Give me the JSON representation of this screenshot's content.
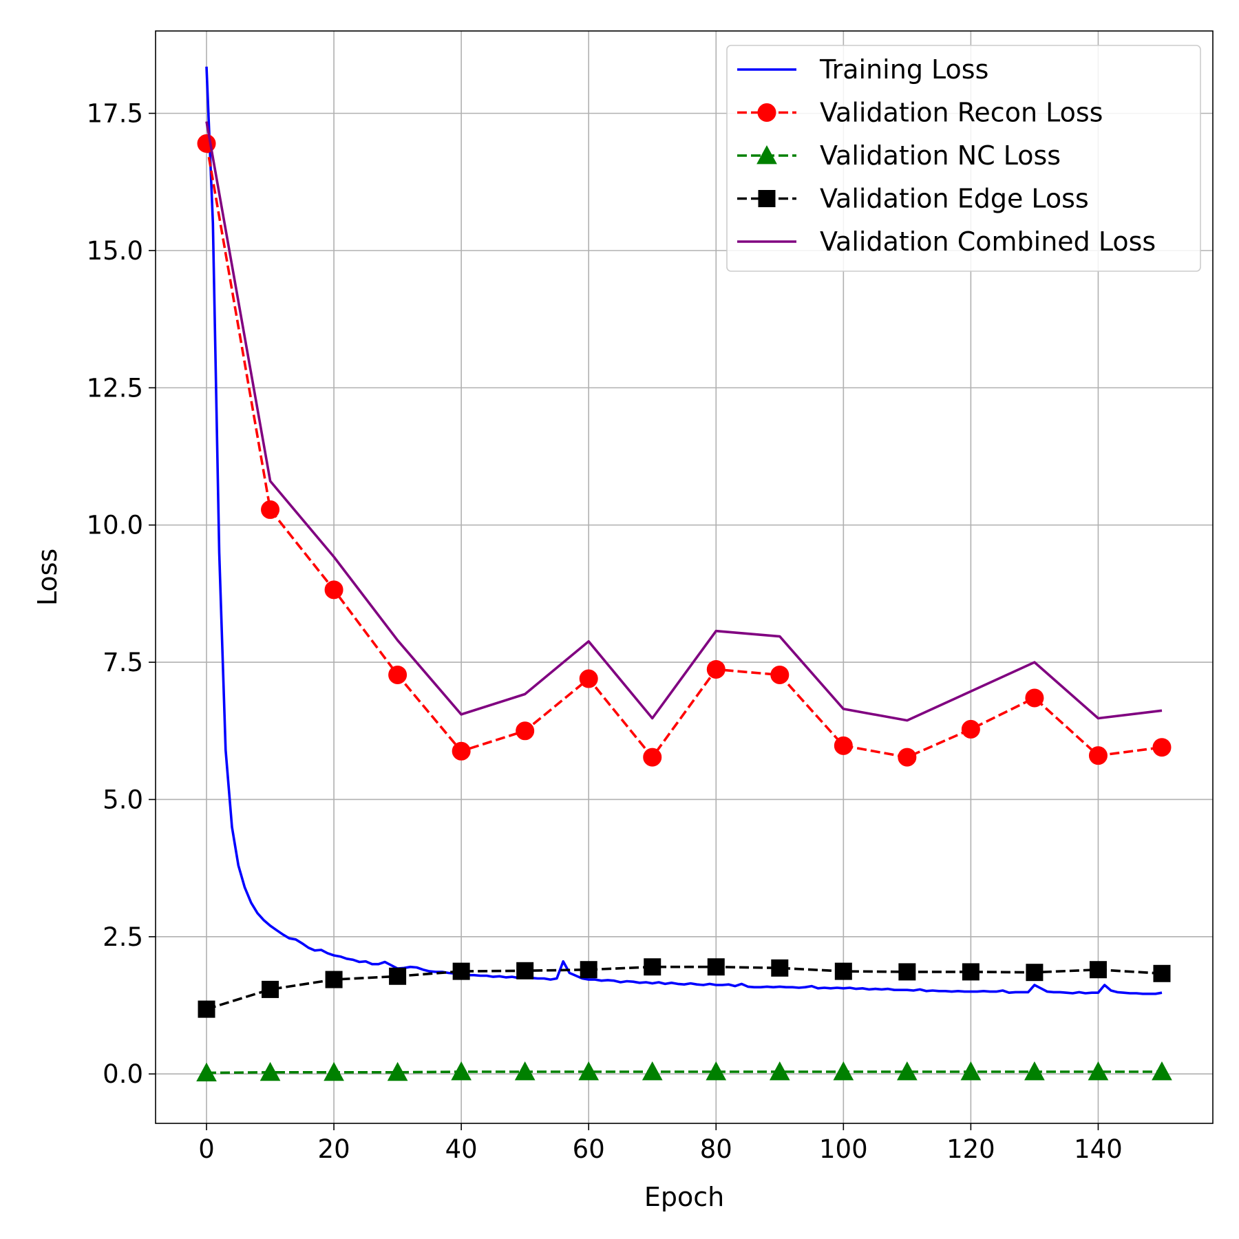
{
  "chart_data": {
    "type": "line",
    "xlabel": "Epoch",
    "ylabel": "Loss",
    "xlim": [
      -8,
      158
    ],
    "ylim": [
      -0.9,
      19.0
    ],
    "x_ticks": [
      0,
      20,
      40,
      60,
      80,
      100,
      120,
      140
    ],
    "y_ticks": [
      0.0,
      2.5,
      5.0,
      7.5,
      10.0,
      12.5,
      15.0,
      17.5
    ],
    "grid": true,
    "legend_position": "top-right",
    "series": [
      {
        "name": "Training Loss",
        "color": "#0000ff",
        "style": "solid",
        "marker": "none",
        "x": [
          0,
          1,
          2,
          3,
          4,
          5,
          6,
          7,
          8,
          9,
          10,
          11,
          12,
          13,
          14,
          15,
          16,
          17,
          18,
          19,
          20,
          21,
          22,
          23,
          24,
          25,
          26,
          27,
          28,
          29,
          30,
          31,
          32,
          33,
          34,
          35,
          36,
          37,
          38,
          39,
          40,
          41,
          42,
          43,
          44,
          45,
          46,
          47,
          48,
          49,
          50,
          51,
          52,
          53,
          54,
          55,
          56,
          57,
          58,
          59,
          60,
          61,
          62,
          63,
          64,
          65,
          66,
          67,
          68,
          69,
          70,
          71,
          72,
          73,
          74,
          75,
          76,
          77,
          78,
          79,
          80,
          81,
          82,
          83,
          84,
          85,
          86,
          87,
          88,
          89,
          90,
          91,
          92,
          93,
          94,
          95,
          96,
          97,
          98,
          99,
          100,
          101,
          102,
          103,
          104,
          105,
          106,
          107,
          108,
          109,
          110,
          111,
          112,
          113,
          114,
          115,
          116,
          117,
          118,
          119,
          120,
          121,
          122,
          123,
          124,
          125,
          126,
          127,
          128,
          129,
          130,
          131,
          132,
          133,
          134,
          135,
          136,
          137,
          138,
          139,
          140,
          141,
          142,
          143,
          144,
          145,
          146,
          147,
          148,
          149,
          150
        ],
        "y": [
          18.35,
          15.5,
          9.5,
          5.9,
          4.5,
          3.8,
          3.4,
          3.12,
          2.93,
          2.8,
          2.7,
          2.62,
          2.54,
          2.47,
          2.45,
          2.38,
          2.3,
          2.25,
          2.26,
          2.2,
          2.16,
          2.14,
          2.1,
          2.08,
          2.04,
          2.05,
          2.0,
          2.0,
          2.04,
          1.98,
          1.92,
          1.93,
          1.95,
          1.94,
          1.9,
          1.87,
          1.86,
          1.86,
          1.84,
          1.83,
          1.82,
          1.8,
          1.8,
          1.79,
          1.79,
          1.77,
          1.78,
          1.76,
          1.77,
          1.75,
          1.76,
          1.75,
          1.74,
          1.74,
          1.72,
          1.74,
          2.05,
          1.84,
          1.79,
          1.74,
          1.72,
          1.72,
          1.7,
          1.71,
          1.7,
          1.67,
          1.69,
          1.68,
          1.66,
          1.67,
          1.65,
          1.67,
          1.64,
          1.66,
          1.64,
          1.63,
          1.65,
          1.63,
          1.62,
          1.64,
          1.62,
          1.62,
          1.63,
          1.6,
          1.64,
          1.59,
          1.58,
          1.58,
          1.59,
          1.58,
          1.59,
          1.58,
          1.58,
          1.57,
          1.58,
          1.6,
          1.56,
          1.57,
          1.56,
          1.57,
          1.56,
          1.57,
          1.55,
          1.56,
          1.54,
          1.55,
          1.54,
          1.55,
          1.53,
          1.53,
          1.53,
          1.52,
          1.54,
          1.51,
          1.52,
          1.51,
          1.51,
          1.5,
          1.51,
          1.5,
          1.5,
          1.5,
          1.51,
          1.5,
          1.5,
          1.52,
          1.48,
          1.49,
          1.49,
          1.49,
          1.62,
          1.56,
          1.5,
          1.49,
          1.49,
          1.48,
          1.47,
          1.49,
          1.47,
          1.48,
          1.48,
          1.62,
          1.52,
          1.49,
          1.48,
          1.47,
          1.47,
          1.46,
          1.46,
          1.46,
          1.48
        ]
      },
      {
        "name": "Validation Recon Loss",
        "color": "#ff0000",
        "style": "dashed",
        "marker": "circle",
        "x": [
          0,
          10,
          20,
          30,
          40,
          50,
          60,
          70,
          80,
          90,
          100,
          110,
          120,
          130,
          140,
          150
        ],
        "y": [
          16.95,
          10.28,
          8.82,
          7.27,
          5.88,
          6.25,
          7.2,
          5.77,
          7.37,
          7.27,
          5.98,
          5.77,
          6.28,
          6.85,
          5.8,
          5.95
        ]
      },
      {
        "name": "Validation NC Loss",
        "color": "#008000",
        "style": "dashed",
        "marker": "triangle",
        "x": [
          0,
          10,
          20,
          30,
          40,
          50,
          60,
          70,
          80,
          90,
          100,
          110,
          120,
          130,
          140,
          150
        ],
        "y": [
          0.02,
          0.03,
          0.03,
          0.03,
          0.04,
          0.04,
          0.04,
          0.04,
          0.04,
          0.04,
          0.04,
          0.04,
          0.04,
          0.04,
          0.04,
          0.04
        ]
      },
      {
        "name": "Validation Edge Loss",
        "color": "#000000",
        "style": "dashed",
        "marker": "square",
        "x": [
          0,
          10,
          20,
          30,
          40,
          50,
          60,
          70,
          80,
          90,
          100,
          110,
          120,
          130,
          140,
          150
        ],
        "y": [
          1.18,
          1.54,
          1.72,
          1.78,
          1.87,
          1.88,
          1.9,
          1.95,
          1.95,
          1.93,
          1.87,
          1.86,
          1.86,
          1.85,
          1.9,
          1.83
        ]
      },
      {
        "name": "Validation Combined Loss",
        "color": "#800080",
        "style": "solid",
        "marker": "none",
        "x": [
          0,
          10,
          20,
          30,
          40,
          50,
          60,
          70,
          80,
          90,
          100,
          110,
          120,
          130,
          140,
          150
        ],
        "y": [
          17.35,
          10.8,
          9.42,
          7.9,
          6.55,
          6.92,
          7.88,
          6.48,
          8.07,
          7.97,
          6.65,
          6.44,
          6.97,
          7.5,
          6.48,
          6.62
        ]
      }
    ]
  }
}
